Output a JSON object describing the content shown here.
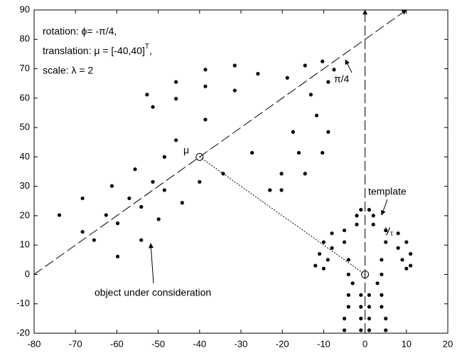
{
  "chart_data": {
    "type": "scatter",
    "xlim": [
      -80,
      20
    ],
    "ylim": [
      -20,
      90
    ],
    "xticks": [
      -80,
      -70,
      -60,
      -50,
      -40,
      -30,
      -20,
      -10,
      0,
      10,
      20
    ],
    "yticks": [
      -20,
      -10,
      0,
      10,
      20,
      30,
      40,
      50,
      60,
      70,
      80,
      90
    ],
    "annotations": {
      "rotation": "rotation: ϕ= -π/4,",
      "translation": {
        "text": "translation: μ = [-40,40]",
        "sup": "T",
        "end": ","
      },
      "scale": "scale: λ = 2",
      "angle": "π/4",
      "mu": "μ",
      "template": "template",
      "y_tau": {
        "text": "y",
        "sub": "τ"
      },
      "object": "object under consideration"
    },
    "guides": [
      {
        "x": [
          -80,
          10
        ],
        "y": [
          0,
          90
        ],
        "style": "dashed"
      },
      {
        "x": [
          0,
          0
        ],
        "y": [
          -20,
          90
        ],
        "style": "dashed"
      },
      {
        "x": [
          -40,
          0
        ],
        "y": [
          40,
          0
        ],
        "style": "dotted"
      }
    ],
    "centers": {
      "x": [
        -40,
        0
      ],
      "y": [
        40,
        0
      ]
    },
    "series": [
      {
        "color": "#000000",
        "x": [
          -2,
          -1,
          1,
          2,
          -2,
          2,
          -5,
          -8,
          5,
          8,
          -10,
          -11,
          -12,
          10,
          11,
          11,
          -8,
          -9,
          -10,
          8,
          9,
          10,
          -5,
          -4,
          -4,
          5,
          4,
          4,
          -3,
          3,
          -4,
          -4,
          -5,
          -5,
          -1,
          -1,
          -1,
          -1,
          4,
          4,
          5,
          5,
          1,
          1,
          1,
          1
        ],
        "y": [
          20,
          22,
          22,
          20,
          17,
          17,
          15,
          14,
          15,
          14,
          11,
          7,
          3,
          11,
          7,
          3,
          9,
          5,
          2,
          9,
          5,
          2,
          11,
          5,
          0,
          11,
          5,
          0,
          -3,
          -3,
          -7,
          -11,
          -15,
          -19,
          -7,
          -11,
          -15,
          -19,
          -7,
          -11,
          -15,
          -19,
          -7,
          -11,
          -15,
          -19
        ]
      },
      {
        "color": "#000000",
        "x": [
          -14.5,
          -10.3,
          -7.5,
          -8.9,
          -18.8,
          -13.1,
          -25.9,
          -31.5,
          -11.7,
          -8.9,
          -38.6,
          -45.7,
          -52.7,
          -10.3,
          -14.5,
          -20.2,
          -38.6,
          -45.7,
          -51.3,
          -16.0,
          -20.2,
          -23.0,
          -31.5,
          -38.6,
          -45.7,
          -17.4,
          -27.3,
          -34.3,
          -48.5,
          -40.0,
          -55.6,
          -61.2,
          -68.3,
          -73.9,
          -51.3,
          -57.0,
          -62.6,
          -68.3,
          -44.2,
          -49.9,
          -54.1,
          -59.8,
          -48.5,
          -54.1,
          -59.8,
          -65.5
        ],
        "y": [
          71.1,
          72.5,
          69.7,
          65.5,
          66.9,
          61.2,
          68.3,
          71.1,
          54.1,
          48.5,
          69.7,
          65.5,
          61.2,
          41.4,
          34.3,
          28.7,
          64.0,
          59.8,
          57.0,
          41.4,
          34.3,
          28.7,
          62.6,
          52.7,
          45.7,
          48.5,
          41.4,
          34.3,
          40.0,
          31.5,
          35.8,
          30.1,
          25.9,
          20.2,
          31.5,
          25.9,
          20.2,
          14.5,
          24.4,
          18.8,
          11.7,
          6.1,
          28.7,
          23.0,
          17.4,
          11.7
        ]
      }
    ]
  }
}
